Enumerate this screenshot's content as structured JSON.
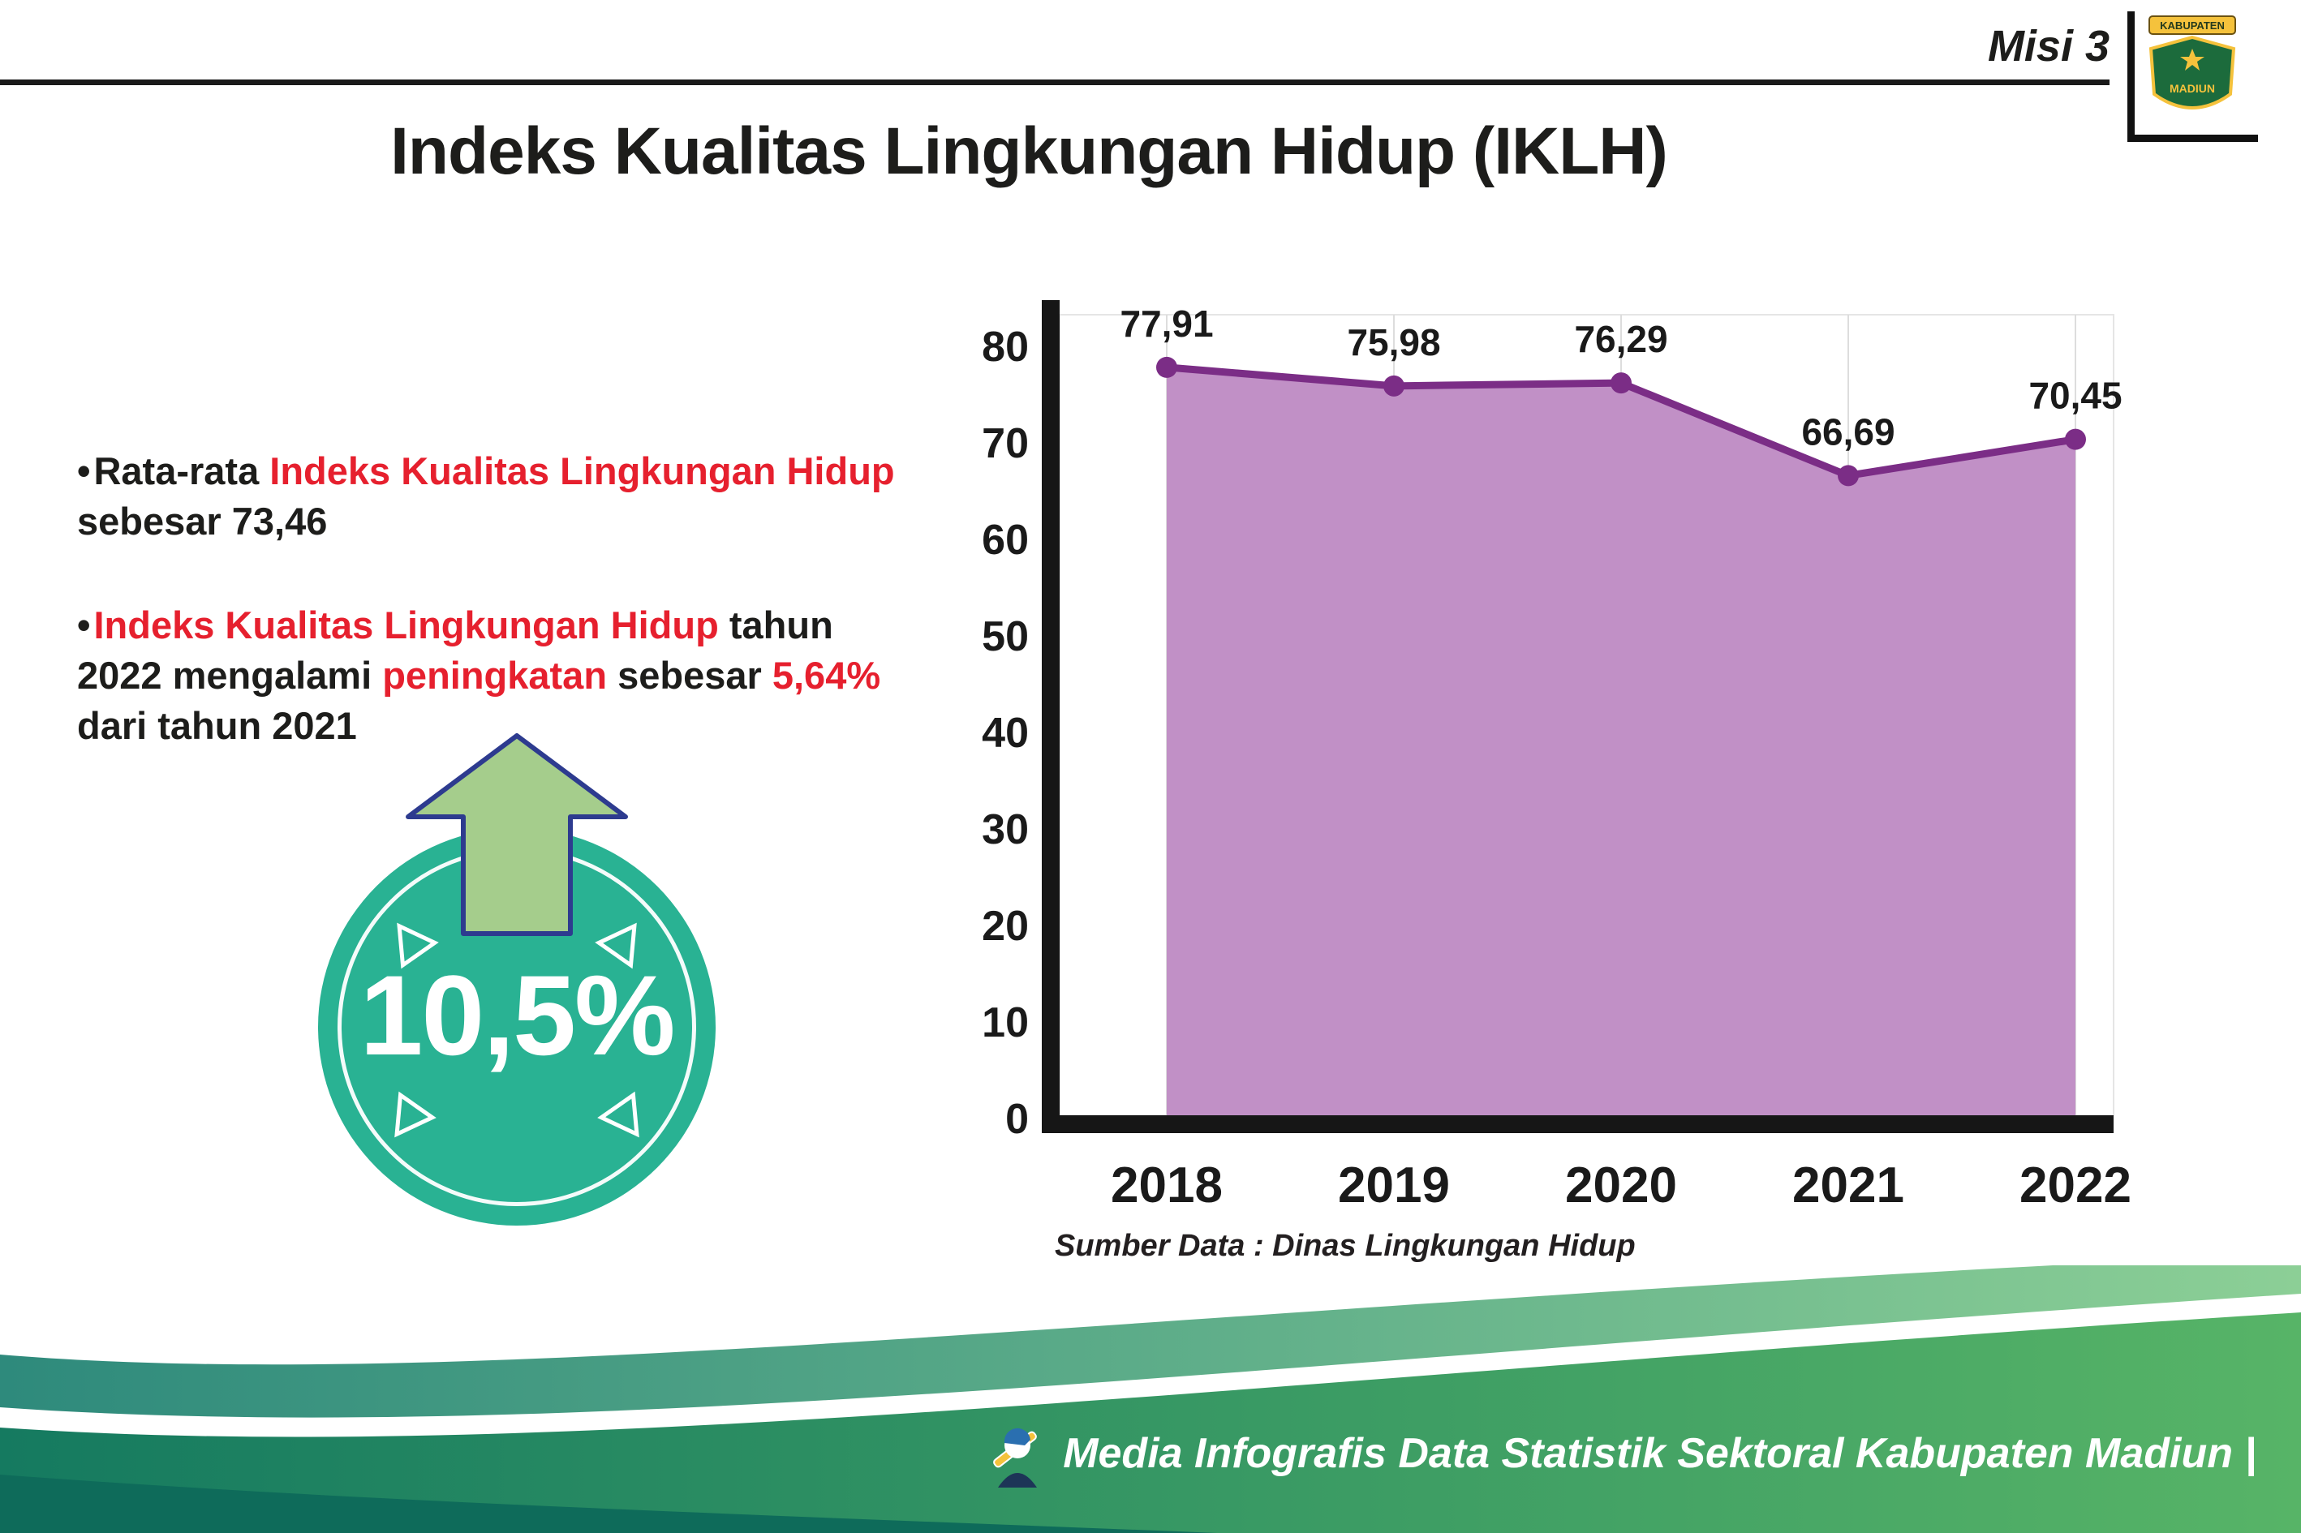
{
  "header": {
    "misi_label": "Misi 3",
    "title": "Indeks Kualitas Lingkungan Hidup (IKLH)"
  },
  "logo": {
    "top_text": "KABUPATEN",
    "bottom_text": "MADIUN"
  },
  "bullets": {
    "bullet1": {
      "seg1": "Rata-rata ",
      "seg2": "Indeks Kualitas Lingkungan Hidup",
      "seg3": " sebesar 73,46"
    },
    "bullet2": {
      "seg1": "Indeks Kualitas Lingkungan Hidup",
      "seg2": " tahun 2022 mengalami ",
      "seg3": "peningkatan",
      "seg4": " sebesar ",
      "seg5": "5,64%",
      "seg6": " dari tahun 2021"
    }
  },
  "badge": {
    "value": "10,5%"
  },
  "chart_data": {
    "type": "area",
    "title": "Indeks Kualitas Lingkungan Hidup (IKLH)",
    "categories": [
      "2018",
      "2019",
      "2020",
      "2021",
      "2022"
    ],
    "values": [
      77.91,
      75.98,
      76.29,
      66.69,
      70.45
    ],
    "data_labels": [
      "77,91",
      "75,98",
      "76,29",
      "66,69",
      "70,45"
    ],
    "ylim": [
      0,
      80
    ],
    "yticks": [
      0,
      10,
      20,
      30,
      40,
      50,
      60,
      70,
      80
    ],
    "grid": "faint-vertical",
    "legend": "none",
    "line_color": "#7b2d86",
    "fill_color": "#c190c6",
    "axis_color": "#161616",
    "source": "Sumber Data : Dinas Lingkungan Hidup"
  },
  "footer": {
    "credit": "Media Infografis Data Statistik Sektoral Kabupaten Madiun |"
  },
  "colors": {
    "accent_red": "#e6202e",
    "badge_teal": "#29b293",
    "arrow_green": "#a5cd8c"
  }
}
